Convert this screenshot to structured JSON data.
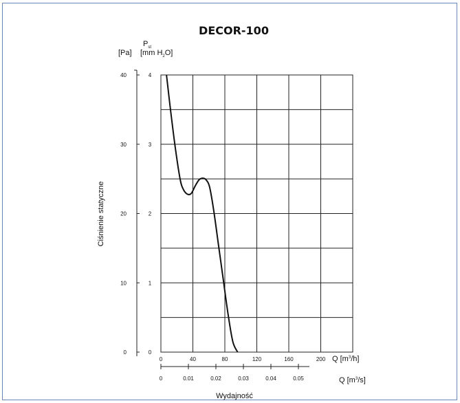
{
  "chart_data": {
    "type": "line",
    "title": "DECOR-100",
    "pressure_symbol": "P",
    "pressure_subscript": "st",
    "unit_pa": "[Pa]",
    "unit_mmh2o_prefix": "[mm H",
    "unit_mmh2o_sub": "2",
    "unit_mmh2o_suffix": "O]",
    "ylabel": "Ciśnienie statyczne",
    "xlabel": "Wydajność",
    "x_unit_m3h_prefix": "Q [m",
    "x_unit_m3h_sup": "3",
    "x_unit_m3h_suffix": "/h]",
    "x_unit_m3s_prefix": "Q [m",
    "x_unit_m3s_sup": "3",
    "x_unit_m3s_suffix": "/s]",
    "y_pa_ticks": [
      "0",
      "10",
      "20",
      "30",
      "40"
    ],
    "y_mm_ticks": [
      "0",
      "1",
      "2",
      "3",
      "4"
    ],
    "x_m3h_ticks": [
      "0",
      "40",
      "80",
      "120",
      "160",
      "200"
    ],
    "x_m3s_ticks": [
      "0",
      "0.01",
      "0.02",
      "0.03",
      "0.04",
      "0.05"
    ],
    "xlim_m3h": [
      0,
      240
    ],
    "ylim_pa": [
      0,
      40
    ],
    "grid": true,
    "series": [
      {
        "x": [
          7,
          12,
          18,
          24,
          28,
          33,
          38,
          43,
          48,
          53,
          57,
          61,
          66,
          72,
          78,
          84,
          90,
          96
        ],
        "y": [
          40,
          35,
          29.5,
          25,
          23.5,
          22.8,
          22.9,
          24.0,
          24.9,
          25.1,
          24.8,
          23.8,
          20.5,
          15.5,
          10.5,
          5.5,
          1.5,
          -0.5
        ]
      }
    ]
  }
}
